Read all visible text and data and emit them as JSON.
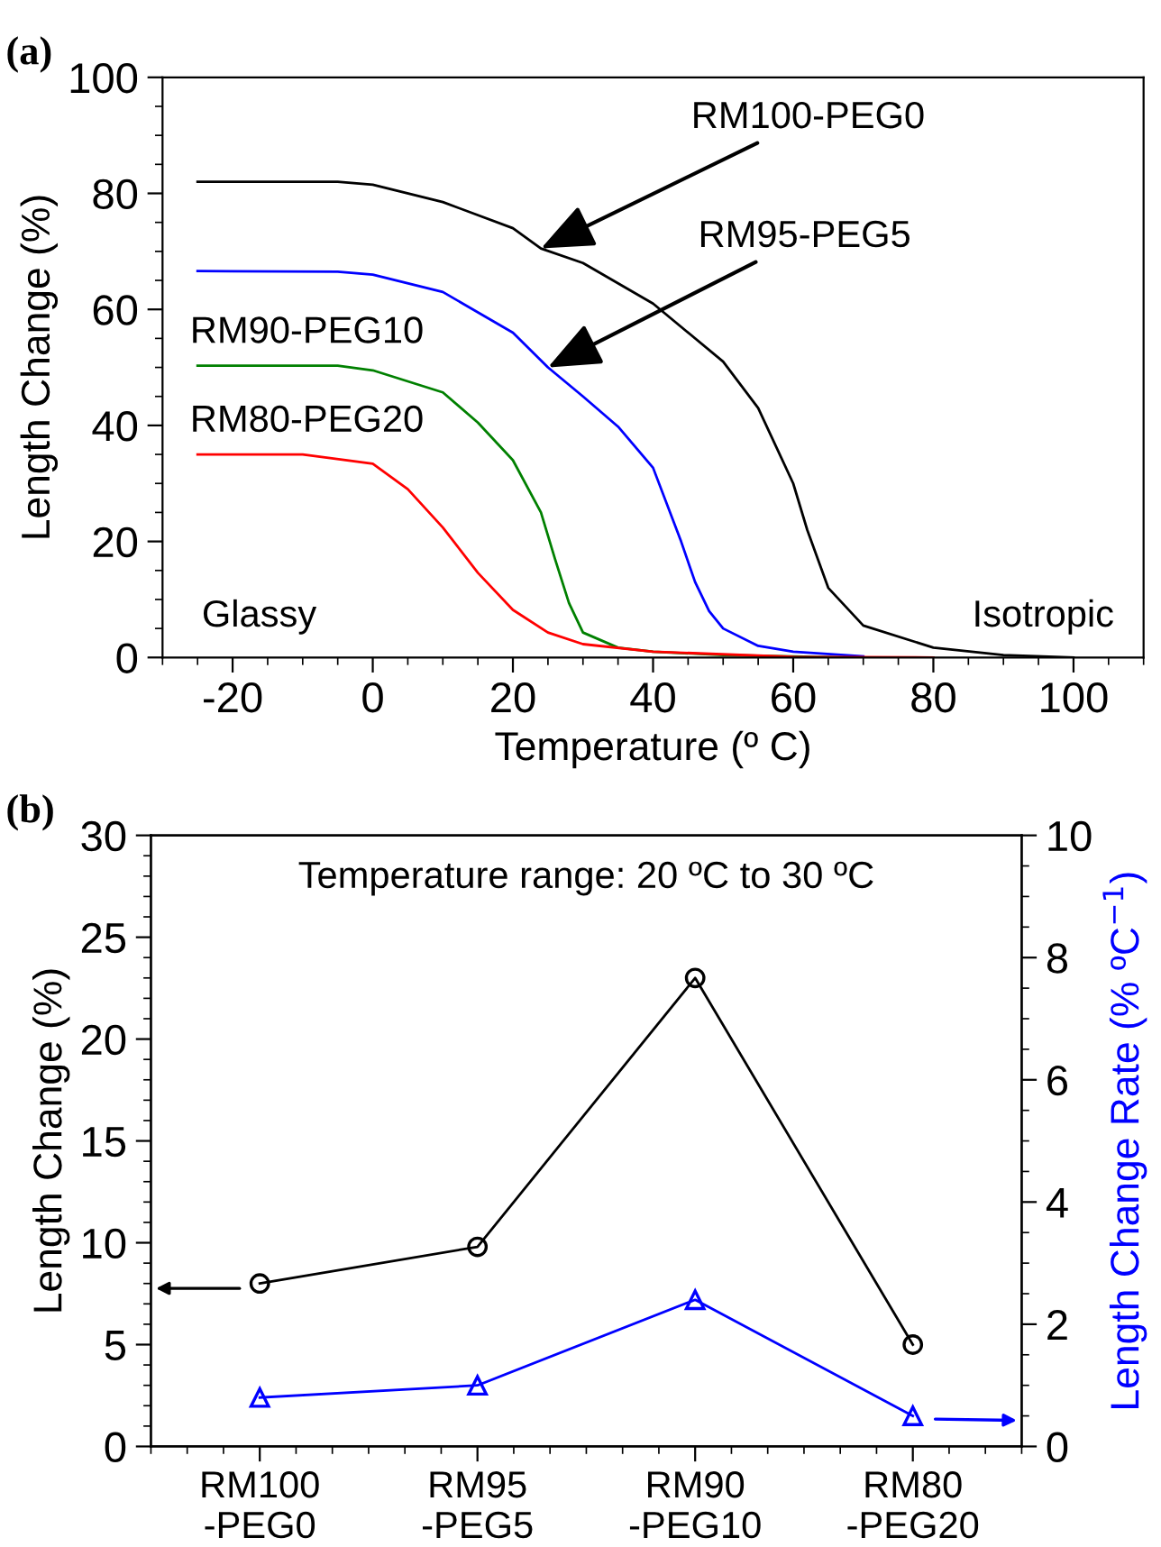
{
  "chart_data": [
    {
      "type": "line",
      "title": "(a)",
      "xlabel": "Temperature (º C)",
      "ylabel": "Length Change (%)",
      "xlim": [
        -30,
        110
      ],
      "xticks": [
        -20,
        0,
        20,
        40,
        60,
        80,
        100
      ],
      "ylim": [
        0,
        100
      ],
      "yticks": [
        0,
        20,
        40,
        60,
        80,
        100
      ],
      "grid": false,
      "legend": false,
      "series": [
        {
          "color": "#000000",
          "x": [
            -25,
            -5,
            0,
            10,
            20,
            24,
            30,
            40,
            50,
            55,
            60,
            62,
            65,
            70,
            80,
            90,
            100
          ],
          "values": [
            82,
            82,
            81.5,
            78.5,
            74,
            70.5,
            68,
            61,
            51,
            43,
            30,
            22,
            12,
            5.5,
            1.7,
            0.4,
            0
          ]
        },
        {
          "color": "#0000ff",
          "x": [
            -25,
            -5,
            0,
            10,
            20,
            25,
            30,
            35,
            40,
            44,
            46,
            48,
            50,
            55,
            60,
            70
          ],
          "values": [
            66.6,
            66.5,
            66,
            63,
            56,
            50,
            45,
            39.8,
            32.7,
            20,
            13,
            8,
            5,
            2,
            1,
            0.2
          ]
        },
        {
          "color": "#008000",
          "x": [
            -25,
            -5,
            0,
            10,
            15,
            20,
            24,
            26,
            28,
            30,
            35,
            40,
            50,
            68
          ],
          "values": [
            50.3,
            50.3,
            49.5,
            45.7,
            40.5,
            34,
            25,
            17,
            9.4,
            4.3,
            1.7,
            1,
            0.4,
            0
          ]
        },
        {
          "color": "#ff0000",
          "x": [
            -25,
            -10,
            0,
            5,
            10,
            15,
            20,
            25,
            30,
            40,
            60,
            80
          ],
          "values": [
            35,
            35,
            33.4,
            29,
            22.4,
            14.6,
            8.2,
            4.3,
            2.3,
            1,
            0.1,
            0
          ]
        }
      ],
      "annotations": [
        {
          "text": "RM100-PEG0",
          "x": 24,
          "y": 70.5
        },
        {
          "text": "RM95-PEG5",
          "x": 25,
          "y": 50
        },
        {
          "text": "RM90-PEG10",
          "x": -25,
          "y": 50.3
        },
        {
          "text": "RM80-PEG20",
          "x": -25,
          "y": 35
        },
        "Glassy",
        "Isotropic"
      ]
    },
    {
      "type": "line",
      "title": "(b)",
      "ylabel": "Length Change (%)",
      "y2label": "Length Change Rate (% ºC$^{−1}$)",
      "categories": [
        "RM100\n-PEG0",
        "RM95\n-PEG5",
        "RM90\n-PEG10",
        "RM80\n-PEG20"
      ],
      "ylim": [
        0,
        30
      ],
      "yticks": [
        0,
        5,
        10,
        15,
        20,
        25,
        30
      ],
      "y2lim": [
        0,
        10
      ],
      "y2ticks": [
        0,
        2,
        4,
        6,
        8,
        10
      ],
      "grid": false,
      "legend": false,
      "series": [
        {
          "color": "#000000",
          "marker": "circle",
          "values": [
            8,
            9.8,
            23,
            5
          ]
        },
        {
          "color": "#0000ff",
          "marker": "triangle",
          "axis": "y2",
          "values": [
            0.8,
            1.0,
            2.4,
            0.5
          ]
        }
      ],
      "annotations": [
        "Temperature range: 20 ºC to 30 ºC"
      ]
    }
  ]
}
